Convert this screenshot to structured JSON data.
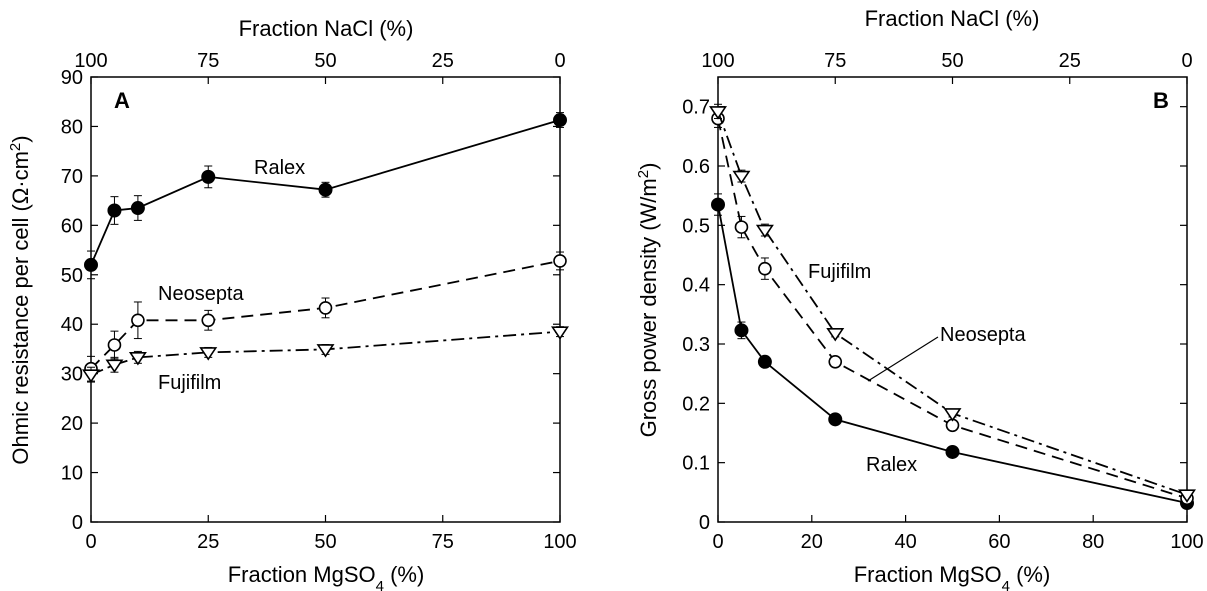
{
  "chart_data": [
    {
      "type": "line",
      "panel": "A",
      "xlabel_main": "Fraction MgSO",
      "xlabel_sub": "4",
      "xlabel_tail": " (%)",
      "x2label": "Fraction NaCl (%)",
      "ylabel_main": "Ohmic resistance per cell (Ω·cm",
      "ylabel_sup": "2",
      "ylabel_tail": ")",
      "xlim": [
        0,
        100
      ],
      "ylim": [
        0,
        90
      ],
      "xticks": [
        0,
        25,
        50,
        75,
        100
      ],
      "x2ticks": [
        100,
        75,
        50,
        25,
        0
      ],
      "yticks": [
        0,
        10,
        20,
        30,
        40,
        50,
        60,
        70,
        80,
        90
      ],
      "grid": false,
      "series": [
        {
          "name": "Ralex",
          "marker": "filled-circle",
          "line": "solid",
          "x": [
            0,
            5,
            10,
            25,
            50,
            100
          ],
          "y": [
            52,
            63,
            63.5,
            69.8,
            67.2,
            81.3
          ],
          "err": [
            2.8,
            2.8,
            2.5,
            2.2,
            1.5,
            1.5
          ]
        },
        {
          "name": "Neosepta",
          "marker": "open-circle",
          "line": "dashed",
          "x": [
            0,
            5,
            10,
            25,
            50,
            100
          ],
          "y": [
            31,
            35.8,
            40.8,
            40.8,
            43.3,
            52.8
          ],
          "err": [
            2.5,
            2.8,
            3.7,
            2.0,
            2.0,
            1.8
          ]
        },
        {
          "name": "Fujifilm",
          "marker": "open-triangle-down",
          "line": "dashdot",
          "x": [
            0,
            5,
            10,
            25,
            50,
            100
          ],
          "y": [
            29.8,
            31.8,
            33.3,
            34.3,
            34.9,
            38.5
          ],
          "err": [
            1.5,
            1.5,
            1.2,
            1.0,
            1.0,
            1.0
          ]
        }
      ]
    },
    {
      "type": "line",
      "panel": "B",
      "xlabel_main": "Fraction MgSO",
      "xlabel_sub": "4",
      "xlabel_tail": " (%)",
      "x2label": "Fraction NaCl (%)",
      "ylabel_main": "Gross power density (W/m",
      "ylabel_sup": "2",
      "ylabel_tail": ")",
      "xlim": [
        0,
        100
      ],
      "ylim": [
        0,
        0.75
      ],
      "xticks": [
        0,
        20,
        40,
        60,
        80,
        100
      ],
      "x2ticks": [
        100,
        75,
        50,
        25,
        0
      ],
      "yticks": [
        0,
        0.1,
        0.2,
        0.3,
        0.4,
        0.5,
        0.6,
        0.7
      ],
      "grid": false,
      "series": [
        {
          "name": "Ralex",
          "marker": "filled-circle",
          "line": "solid",
          "x": [
            0,
            5,
            10,
            25,
            50,
            100
          ],
          "y": [
            0.535,
            0.323,
            0.27,
            0.173,
            0.118,
            0.032
          ],
          "err": [
            0.018,
            0.014,
            0.008,
            0.006,
            0.006,
            0.004
          ]
        },
        {
          "name": "Neosepta",
          "marker": "open-circle",
          "line": "dashed",
          "x": [
            0,
            5,
            10,
            25,
            50,
            100
          ],
          "y": [
            0.68,
            0.497,
            0.427,
            0.27,
            0.163,
            0.04
          ],
          "err": [
            0.015,
            0.018,
            0.018,
            0.007,
            0.006,
            0.004
          ]
        },
        {
          "name": "Fujifilm",
          "marker": "open-triangle-down",
          "line": "dashdot",
          "x": [
            0,
            5,
            10,
            25,
            50,
            100
          ],
          "y": [
            0.692,
            0.583,
            0.492,
            0.318,
            0.183,
            0.046
          ],
          "err": [
            0.012,
            0.01,
            0.01,
            0.006,
            0.006,
            0.004
          ]
        }
      ]
    }
  ]
}
